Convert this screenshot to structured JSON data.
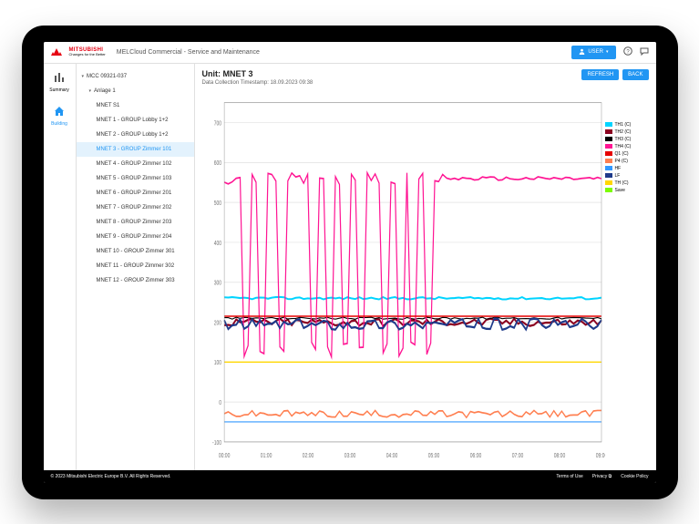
{
  "header": {
    "brand_top": "MITSUBISHI",
    "brand_bottom": "ELECTRIC",
    "brand_tagline": "Changes for the Better",
    "title": "MELCloud Commercial - Service and Maintenance",
    "user_label": "USER",
    "brand_color": "#e60012",
    "user_btn_color": "#2196f3"
  },
  "nav": {
    "items": [
      {
        "icon": "bars",
        "label": "Summary",
        "active": false
      },
      {
        "icon": "home",
        "label": "Building",
        "active": true
      }
    ],
    "active_color": "#2196f3"
  },
  "tree": {
    "root": "MCC 09321-037",
    "group": "Anlage 1",
    "items": [
      "MNET S1",
      "MNET 1 - GROUP Lobby 1+2",
      "MNET 2 - GROUP Lobby 1+2",
      "MNET 3 - GROUP Zimmer 101",
      "MNET 4 - GROUP Zimmer 102",
      "MNET 5 - GROUP Zimmer 103",
      "MNET 6 - GROUP Zimmer 201",
      "MNET 7 - GROUP Zimmer 202",
      "MNET 8 - GROUP Zimmer 203",
      "MNET 9 - GROUP Zimmer 204",
      "MNET 10 - GROUP Zimmer 301",
      "MNET 11 - GROUP Zimmer 302",
      "MNET 12 - GROUP Zimmer 303"
    ],
    "selected_index": 3,
    "selected_bg": "#e3f2fd",
    "selected_fg": "#2196f3"
  },
  "content": {
    "title": "Unit: MNET 3",
    "subtitle": "Data Collection Timestamp: 18.09.2023 09:38",
    "refresh_label": "REFRESH",
    "back_label": "BACK"
  },
  "chart": {
    "type": "line",
    "background_color": "#ffffff",
    "grid_color": "#e0e0e0",
    "axis_color": "#999999",
    "tick_fontsize": 5,
    "ylim": [
      -100,
      750
    ],
    "yticks": [
      -100,
      0,
      100,
      200,
      300,
      400,
      500,
      600,
      700
    ],
    "xticks": [
      "00:00",
      "01:00",
      "02:00",
      "03:00",
      "04:00",
      "05:00",
      "06:00",
      "07:00",
      "08:00",
      "09:00"
    ],
    "x_count": 96,
    "series": [
      {
        "name": "TH1 (C)",
        "color": "#00d4ff",
        "const": 260,
        "noise": 6,
        "width": 1.4
      },
      {
        "name": "TH2 (C)",
        "color": "#8b0020",
        "const": 200,
        "noise": 20,
        "width": 1.6
      },
      {
        "name": "TH3 (C)",
        "color": "#000000",
        "const": 210,
        "noise": 5,
        "width": 0.8
      },
      {
        "name": "TH4 (C)",
        "color": "#ff1493",
        "base": 560,
        "dip_to": 130,
        "noise": 30,
        "width": 1.2,
        "spiky": true
      },
      {
        "name": "Q1 (C)",
        "color": "#e60000",
        "const": 215,
        "noise": 0,
        "width": 1.0
      },
      {
        "name": "P4 (C)",
        "color": "#ff7f50",
        "const": -30,
        "noise": 18,
        "width": 1.2
      },
      {
        "name": "HF",
        "color": "#3399ff",
        "const": -50,
        "noise": 0,
        "width": 0.8
      },
      {
        "name": "LF",
        "color": "#1e3a8a",
        "const": 195,
        "noise": 28,
        "width": 1.6
      },
      {
        "name": "TH (C)",
        "color": "#ffd700",
        "const": 100,
        "noise": 0,
        "width": 1.0
      },
      {
        "name": "Save",
        "color": "#7cfc00",
        "const": -100,
        "noise": 0,
        "width": 0
      }
    ],
    "pink_dips_x": [
      5,
      9,
      14,
      22,
      26,
      30,
      34,
      40,
      44,
      47,
      51,
      56
    ]
  },
  "footer": {
    "copyright": "© 2023 Mitsubishi Electric Europe B.V. All Rights Reserved.",
    "links": [
      "Terms of Use",
      "Privacy",
      "Cookie Policy"
    ]
  }
}
